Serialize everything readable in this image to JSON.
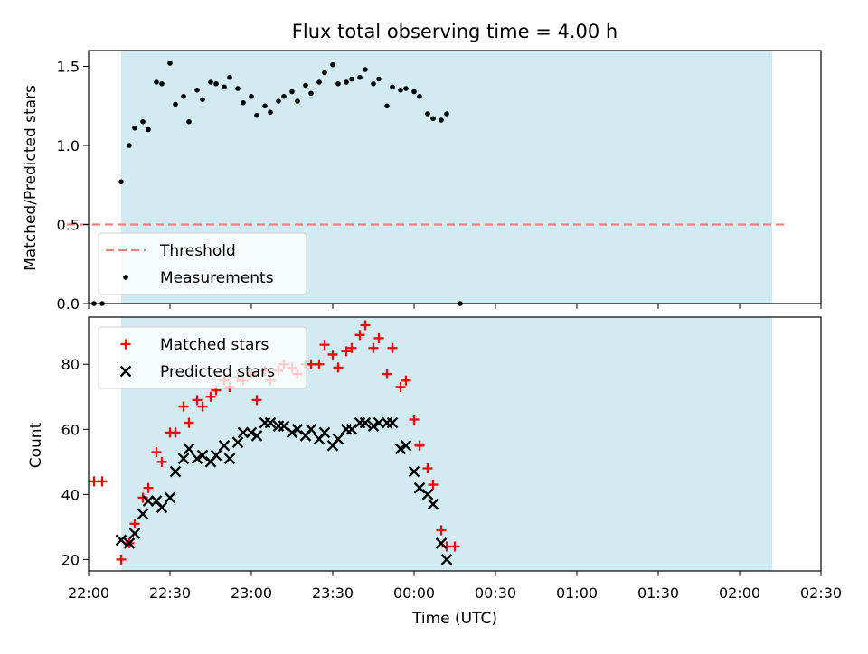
{
  "chart_data": {
    "type": "scatter",
    "title": "Flux total observing time = 4.00 h",
    "xlabel": "Time (UTC)",
    "x_ticks": [
      "22:00",
      "22:30",
      "23:00",
      "23:30",
      "00:00",
      "00:30",
      "01:00",
      "01:30",
      "02:00",
      "02:30"
    ],
    "x_start": "22:00",
    "x_end": "02:30",
    "shaded_span": {
      "from": "22:12",
      "to": "02:12",
      "color": "#add8e6"
    },
    "panels": [
      {
        "name": "ratio",
        "ylabel": "Matched/Predicted stars",
        "ylim": [
          0,
          1.6
        ],
        "yticks": [
          "0.0",
          "0.5",
          "1.0",
          "1.5"
        ],
        "threshold": {
          "label": "Threshold",
          "value": 0.5,
          "from": "21:52",
          "to": "02:18",
          "color": "#f08080"
        },
        "legend_position": "lower-left",
        "series": [
          {
            "name": "Measurements",
            "color": "#000000",
            "marker": "dot",
            "points": [
              [
                "22:02",
                0.0
              ],
              [
                "22:05",
                0.0
              ],
              [
                "22:12",
                0.77
              ],
              [
                "22:15",
                1.0
              ],
              [
                "22:17",
                1.11
              ],
              [
                "22:20",
                1.15
              ],
              [
                "22:22",
                1.1
              ],
              [
                "22:25",
                1.4
              ],
              [
                "22:27",
                1.39
              ],
              [
                "22:30",
                1.52
              ],
              [
                "22:32",
                1.26
              ],
              [
                "22:35",
                1.31
              ],
              [
                "22:37",
                1.15
              ],
              [
                "22:40",
                1.35
              ],
              [
                "22:42",
                1.29
              ],
              [
                "22:45",
                1.4
              ],
              [
                "22:47",
                1.39
              ],
              [
                "22:50",
                1.37
              ],
              [
                "22:52",
                1.43
              ],
              [
                "22:55",
                1.36
              ],
              [
                "22:57",
                1.27
              ],
              [
                "23:00",
                1.31
              ],
              [
                "23:02",
                1.19
              ],
              [
                "23:05",
                1.25
              ],
              [
                "23:07",
                1.21
              ],
              [
                "23:10",
                1.28
              ],
              [
                "23:12",
                1.31
              ],
              [
                "23:15",
                1.34
              ],
              [
                "23:17",
                1.28
              ],
              [
                "23:20",
                1.38
              ],
              [
                "23:22",
                1.33
              ],
              [
                "23:25",
                1.4
              ],
              [
                "23:27",
                1.46
              ],
              [
                "23:30",
                1.51
              ],
              [
                "23:32",
                1.39
              ],
              [
                "23:35",
                1.4
              ],
              [
                "23:37",
                1.42
              ],
              [
                "23:40",
                1.43
              ],
              [
                "23:42",
                1.48
              ],
              [
                "23:45",
                1.39
              ],
              [
                "23:47",
                1.42
              ],
              [
                "23:50",
                1.25
              ],
              [
                "23:52",
                1.37
              ],
              [
                "23:55",
                1.35
              ],
              [
                "23:57",
                1.36
              ],
              [
                "24:00",
                1.34
              ],
              [
                "24:02",
                1.31
              ],
              [
                "24:05",
                1.2
              ],
              [
                "24:07",
                1.17
              ],
              [
                "24:10",
                1.16
              ],
              [
                "24:12",
                1.2
              ],
              [
                "24:17",
                0.0
              ]
            ]
          }
        ]
      },
      {
        "name": "counts",
        "ylabel": "Count",
        "ylim": [
          16.5,
          94.5
        ],
        "yticks": [
          "20",
          "40",
          "60",
          "80"
        ],
        "legend_position": "top-left",
        "series": [
          {
            "name": "Matched stars",
            "color": "#ff0000",
            "marker": "plus",
            "points": [
              [
                "22:02",
                44
              ],
              [
                "22:05",
                44
              ],
              [
                "22:12",
                20
              ],
              [
                "22:15",
                25
              ],
              [
                "22:17",
                31
              ],
              [
                "22:20",
                39
              ],
              [
                "22:22",
                42
              ],
              [
                "22:25",
                53
              ],
              [
                "22:27",
                50
              ],
              [
                "22:30",
                59
              ],
              [
                "22:32",
                59
              ],
              [
                "22:35",
                67
              ],
              [
                "22:37",
                62
              ],
              [
                "22:40",
                69
              ],
              [
                "22:42",
                67
              ],
              [
                "22:45",
                70
              ],
              [
                "22:47",
                72
              ],
              [
                "22:50",
                75
              ],
              [
                "22:52",
                73
              ],
              [
                "22:55",
                76
              ],
              [
                "22:57",
                75
              ],
              [
                "23:00",
                77
              ],
              [
                "23:02",
                69
              ],
              [
                "23:05",
                78
              ],
              [
                "23:07",
                75
              ],
              [
                "23:10",
                78
              ],
              [
                "23:12",
                80
              ],
              [
                "23:15",
                79
              ],
              [
                "23:17",
                77
              ],
              [
                "23:20",
                80
              ],
              [
                "23:22",
                80
              ],
              [
                "23:25",
                80
              ],
              [
                "23:27",
                86
              ],
              [
                "23:30",
                83
              ],
              [
                "23:32",
                79
              ],
              [
                "23:35",
                84
              ],
              [
                "23:37",
                85
              ],
              [
                "23:40",
                89
              ],
              [
                "23:42",
                92
              ],
              [
                "23:45",
                85
              ],
              [
                "23:47",
                88
              ],
              [
                "23:50",
                77
              ],
              [
                "23:52",
                85
              ],
              [
                "23:55",
                73
              ],
              [
                "23:57",
                75
              ],
              [
                "24:00",
                63
              ],
              [
                "24:02",
                55
              ],
              [
                "24:05",
                48
              ],
              [
                "24:07",
                43
              ],
              [
                "24:10",
                29
              ],
              [
                "24:12",
                24
              ],
              [
                "24:15",
                24
              ]
            ]
          },
          {
            "name": "Predicted stars",
            "color": "#000000",
            "marker": "x",
            "points": [
              [
                "22:12",
                26
              ],
              [
                "22:15",
                25
              ],
              [
                "22:17",
                28
              ],
              [
                "22:20",
                34
              ],
              [
                "22:22",
                38
              ],
              [
                "22:25",
                38
              ],
              [
                "22:27",
                36
              ],
              [
                "22:30",
                39
              ],
              [
                "22:32",
                47
              ],
              [
                "22:35",
                51
              ],
              [
                "22:37",
                54
              ],
              [
                "22:40",
                51
              ],
              [
                "22:42",
                52
              ],
              [
                "22:45",
                50
              ],
              [
                "22:47",
                52
              ],
              [
                "22:50",
                55
              ],
              [
                "22:52",
                51
              ],
              [
                "22:55",
                56
              ],
              [
                "22:57",
                59
              ],
              [
                "23:00",
                59
              ],
              [
                "23:02",
                58
              ],
              [
                "23:05",
                62
              ],
              [
                "23:07",
                62
              ],
              [
                "23:10",
                61
              ],
              [
                "23:12",
                61
              ],
              [
                "23:15",
                59
              ],
              [
                "23:17",
                60
              ],
              [
                "23:20",
                58
              ],
              [
                "23:22",
                60
              ],
              [
                "23:25",
                57
              ],
              [
                "23:27",
                59
              ],
              [
                "23:30",
                55
              ],
              [
                "23:32",
                57
              ],
              [
                "23:35",
                60
              ],
              [
                "23:37",
                60
              ],
              [
                "23:40",
                62
              ],
              [
                "23:42",
                62
              ],
              [
                "23:45",
                61
              ],
              [
                "23:47",
                62
              ],
              [
                "23:50",
                62
              ],
              [
                "23:52",
                62
              ],
              [
                "23:55",
                54
              ],
              [
                "23:57",
                55
              ],
              [
                "24:00",
                47
              ],
              [
                "24:02",
                42
              ],
              [
                "24:05",
                40
              ],
              [
                "24:07",
                37
              ],
              [
                "24:10",
                25
              ],
              [
                "24:12",
                20
              ]
            ]
          }
        ]
      }
    ]
  }
}
